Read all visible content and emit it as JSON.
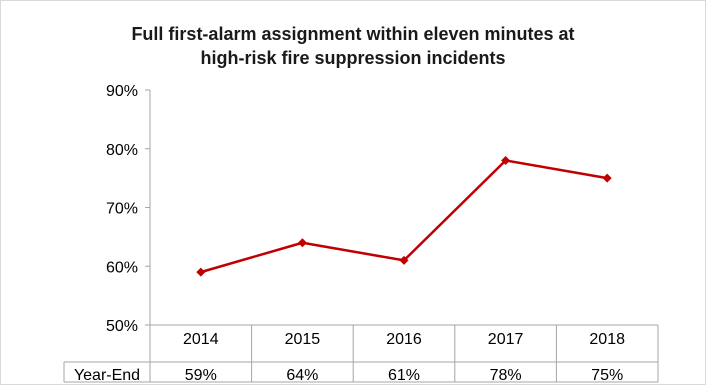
{
  "chart_data": {
    "type": "line",
    "title_lines": [
      "Full first-alarm assignment within eleven minutes at",
      "high-risk fire suppression incidents"
    ],
    "categories": [
      "2014",
      "2015",
      "2016",
      "2017",
      "2018"
    ],
    "series": [
      {
        "name": "Year-End",
        "values": [
          59,
          64,
          61,
          78,
          75
        ],
        "value_labels": [
          "59%",
          "64%",
          "61%",
          "78%",
          "75%"
        ],
        "color": "#c00000"
      }
    ],
    "ylim": [
      50,
      90
    ],
    "yticks": [
      50,
      60,
      70,
      80,
      90
    ],
    "ytick_labels": [
      "50%",
      "60%",
      "70%",
      "80%",
      "90%"
    ],
    "grid": false,
    "data_table": true,
    "marker": "diamond"
  }
}
